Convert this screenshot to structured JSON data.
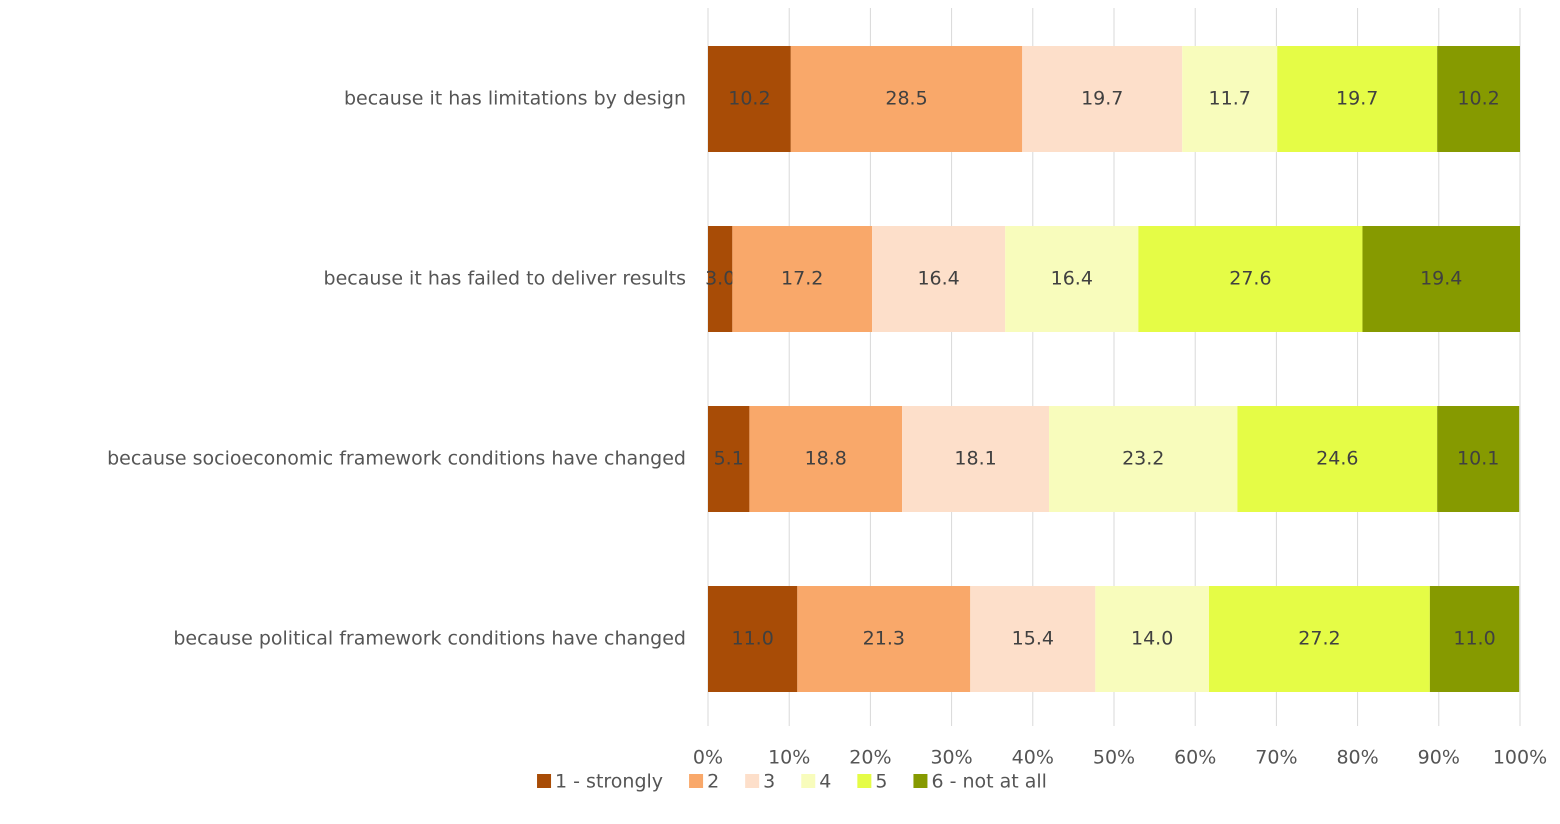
{
  "chart_data": {
    "type": "bar",
    "orientation": "horizontal",
    "stacked": true,
    "categories": [
      "because it has limitations by design",
      "because it has failed to deliver results",
      "because socioeconomic framework conditions have changed",
      "because political framework conditions have changed"
    ],
    "series": [
      {
        "name": "1 - strongly",
        "color": "#a84c06",
        "values": [
          10.2,
          3.0,
          5.1,
          11.0
        ],
        "value_labels": [
          "10.2",
          "3.0",
          "5.1",
          "11.0"
        ]
      },
      {
        "name": "2",
        "color": "#f9a86a",
        "values": [
          28.5,
          17.2,
          18.8,
          21.3
        ],
        "value_labels": [
          "28.5",
          "17.2",
          "18.8",
          "21.3"
        ]
      },
      {
        "name": "3",
        "color": "#fddfca",
        "values": [
          19.7,
          16.4,
          18.1,
          15.4
        ],
        "value_labels": [
          "19.7",
          "16.4",
          "18.1",
          "15.4"
        ]
      },
      {
        "name": "4",
        "color": "#f8fcbc",
        "values": [
          11.7,
          16.4,
          23.2,
          14.0
        ],
        "value_labels": [
          "11.7",
          "16.4",
          "23.2",
          "14.0"
        ]
      },
      {
        "name": "5",
        "color": "#e5fc46",
        "values": [
          19.7,
          27.6,
          24.6,
          27.2
        ],
        "value_labels": [
          "19.7",
          "27.6",
          "24.6",
          "27.2"
        ]
      },
      {
        "name": "6 - not at all",
        "color": "#869a00",
        "values": [
          10.2,
          19.4,
          10.1,
          11.0
        ],
        "value_labels": [
          "10.2",
          "19.4",
          "10.1",
          "11.0"
        ]
      }
    ],
    "xlim": [
      0,
      100
    ],
    "xticks": [
      {
        "value": 0,
        "label": "0%"
      },
      {
        "value": 10,
        "label": "10%"
      },
      {
        "value": 20,
        "label": "20%"
      },
      {
        "value": 30,
        "label": "30%"
      },
      {
        "value": 40,
        "label": "40%"
      },
      {
        "value": 50,
        "label": "50%"
      },
      {
        "value": 60,
        "label": "60%"
      },
      {
        "value": 70,
        "label": "70%"
      },
      {
        "value": 80,
        "label": "80%"
      },
      {
        "value": 90,
        "label": "90%"
      },
      {
        "value": 100,
        "label": "100%"
      }
    ],
    "grid": true,
    "legend": "bottom"
  }
}
